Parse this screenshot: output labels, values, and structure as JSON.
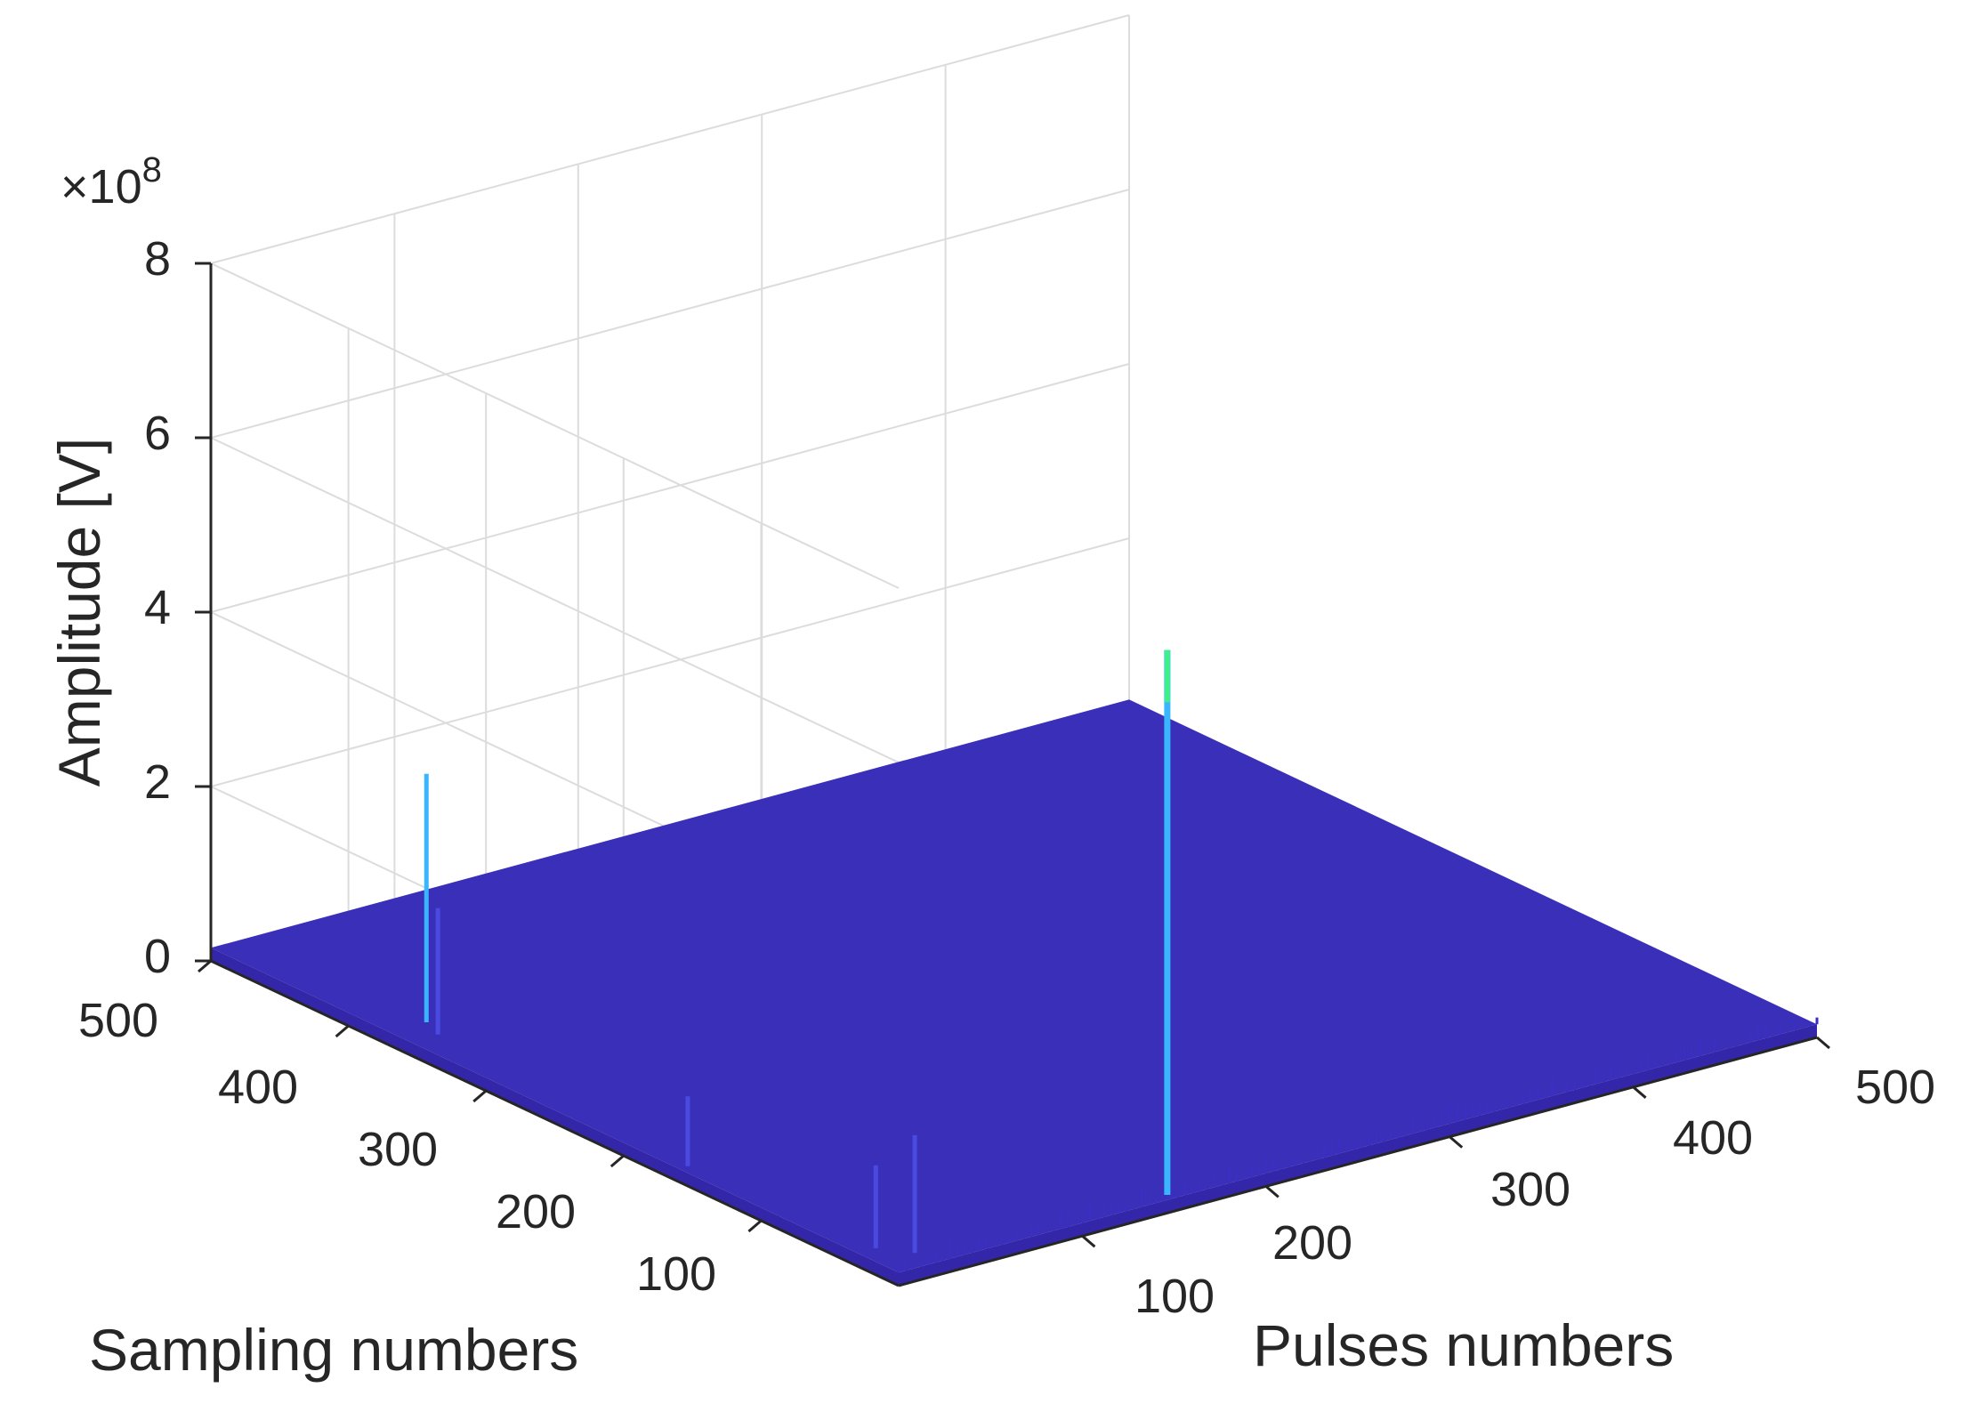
{
  "chart_data": {
    "type": "surface",
    "zlabel": "Amplitude [V]",
    "xlabel": "Pulses numbers",
    "ylabel": "Sampling numbers",
    "z_multiplier": "×10",
    "z_exponent": "8",
    "xlim": [
      0,
      500
    ],
    "ylim": [
      0,
      500
    ],
    "zlim": [
      0,
      8
    ],
    "xticks": [
      "100",
      "200",
      "300",
      "400",
      "500"
    ],
    "yticks": [
      "100",
      "200",
      "300",
      "400",
      "500"
    ],
    "zticks": [
      "0",
      "2",
      "4",
      "6",
      "8"
    ],
    "grid": true,
    "colormap": "parula",
    "surface_color": "#3a2fb8",
    "peak_color": "#39b6ff",
    "top_color": "#3ef08a",
    "baseline_level": 0.15,
    "peaks": [
      {
        "x": 150,
        "y": 5,
        "z": 6.4
      },
      {
        "x": 20,
        "y": 370,
        "z": 3.0
      },
      {
        "x": 15,
        "y": 355,
        "z": 1.6
      },
      {
        "x": 5,
        "y": 160,
        "z": 0.95
      },
      {
        "x": 20,
        "y": 15,
        "z": 1.5
      },
      {
        "x": 10,
        "y": 30,
        "z": 1.1
      }
    ]
  }
}
